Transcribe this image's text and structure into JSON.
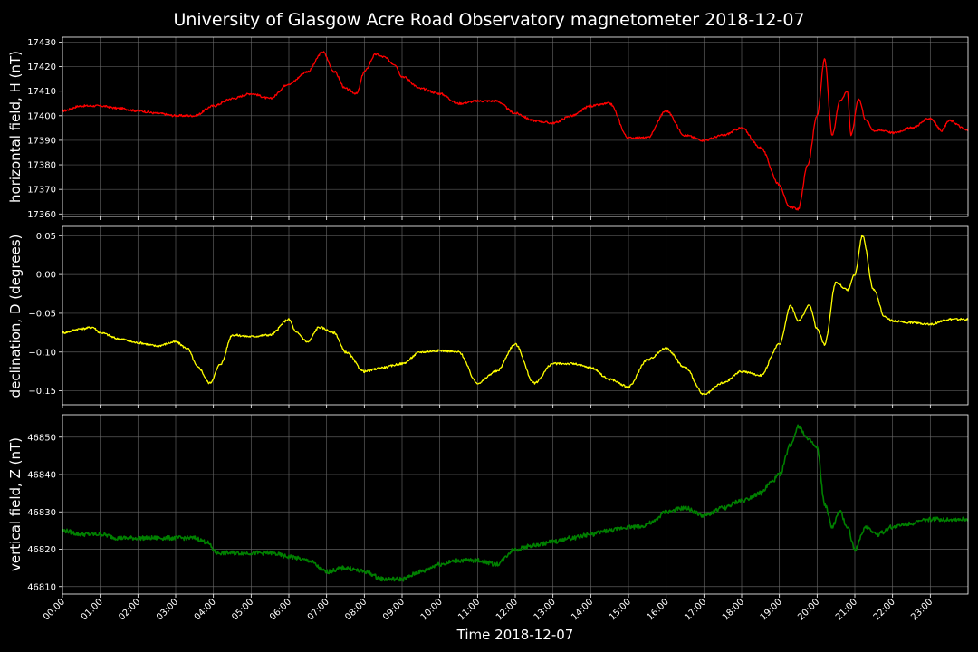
{
  "chart_data": {
    "title": "University of Glasgow Acre Road Observatory magnetometer 2018-12-07",
    "xlabel": "Time 2018-12-07",
    "x_ticks": [
      "00:00",
      "01:00",
      "02:00",
      "03:00",
      "04:00",
      "05:00",
      "06:00",
      "07:00",
      "08:00",
      "09:00",
      "10:00",
      "11:00",
      "12:00",
      "13:00",
      "14:00",
      "15:00",
      "16:00",
      "17:00",
      "18:00",
      "19:00",
      "20:00",
      "21:00",
      "22:00",
      "23:00"
    ],
    "xlim_hours": [
      0,
      24
    ],
    "grid": true,
    "panels": [
      {
        "type": "line",
        "name": "horizontal field, H",
        "ylabel": "horizontal field, H (nT)",
        "color": "#ff0000",
        "ylim": [
          17359,
          17432
        ],
        "y_ticks": [
          17360,
          17370,
          17380,
          17390,
          17400,
          17410,
          17420,
          17430
        ],
        "x_hours": [
          0,
          0.5,
          1,
          1.5,
          2,
          2.5,
          3,
          3.5,
          4,
          4.5,
          5,
          5.5,
          6,
          6.5,
          6.9,
          7.2,
          7.5,
          7.8,
          8,
          8.3,
          8.5,
          8.8,
          9,
          9.5,
          10,
          10.5,
          11,
          11.5,
          12,
          12.5,
          13,
          13.5,
          14,
          14.5,
          15,
          15.5,
          16,
          16.5,
          17,
          17.5,
          18,
          18.5,
          19,
          19.25,
          19.5,
          19.75,
          20,
          20.2,
          20.4,
          20.6,
          20.8,
          20.9,
          21.1,
          21.3,
          21.5,
          21.8,
          22,
          22.5,
          23,
          23.3,
          23.5,
          24
        ],
        "values": [
          17402,
          17404,
          17404,
          17403,
          17402,
          17401,
          17400,
          17400,
          17404,
          17407,
          17409,
          17407,
          17413,
          17418,
          17426,
          17418,
          17411,
          17409,
          17418,
          17425,
          17424,
          17421,
          17416,
          17411,
          17409,
          17405,
          17406,
          17406,
          17401,
          17398,
          17397,
          17400,
          17404,
          17405,
          17391,
          17391,
          17402,
          17392,
          17390,
          17392,
          17395,
          17387,
          17372,
          17363,
          17362,
          17380,
          17400,
          17423,
          17392,
          17406,
          17410,
          17392,
          17407,
          17398,
          17394,
          17394,
          17393,
          17395,
          17399,
          17394,
          17398,
          17394
        ]
      },
      {
        "type": "line",
        "name": "declination, D",
        "ylabel": "declination, D (degrees)",
        "color": "#ffff00",
        "ylim": [
          -0.168,
          0.062
        ],
        "y_ticks": [
          -0.15,
          -0.1,
          -0.05,
          0.0,
          0.05
        ],
        "y_tick_labels": [
          "−0.15",
          "−0.10",
          "−0.05",
          "0.00",
          "0.05"
        ],
        "x_hours": [
          0,
          0.5,
          0.8,
          1,
          1.5,
          2,
          2.5,
          3,
          3.3,
          3.6,
          3.9,
          4.2,
          4.5,
          5,
          5.5,
          6,
          6.2,
          6.5,
          6.8,
          7.2,
          7.5,
          8,
          8.5,
          9,
          9.5,
          10,
          10.5,
          11,
          11.5,
          12,
          12.5,
          13,
          13.5,
          14,
          14.5,
          15,
          15.5,
          16,
          16.5,
          17,
          17.5,
          18,
          18.5,
          19,
          19.3,
          19.5,
          19.8,
          20,
          20.2,
          20.5,
          20.8,
          21,
          21.2,
          21.5,
          21.8,
          22,
          22.5,
          23,
          23.5,
          24
        ],
        "values": [
          -0.075,
          -0.07,
          -0.068,
          -0.075,
          -0.083,
          -0.088,
          -0.092,
          -0.087,
          -0.095,
          -0.12,
          -0.14,
          -0.115,
          -0.078,
          -0.08,
          -0.078,
          -0.058,
          -0.075,
          -0.087,
          -0.068,
          -0.075,
          -0.1,
          -0.125,
          -0.12,
          -0.115,
          -0.1,
          -0.098,
          -0.1,
          -0.14,
          -0.125,
          -0.09,
          -0.14,
          -0.115,
          -0.115,
          -0.12,
          -0.135,
          -0.145,
          -0.11,
          -0.095,
          -0.12,
          -0.155,
          -0.14,
          -0.125,
          -0.13,
          -0.09,
          -0.04,
          -0.06,
          -0.04,
          -0.07,
          -0.09,
          -0.01,
          -0.02,
          0.0,
          0.05,
          -0.02,
          -0.055,
          -0.06,
          -0.062,
          -0.064,
          -0.058,
          -0.058
        ]
      },
      {
        "type": "line",
        "name": "vertical field, Z",
        "ylabel": "vertical field, Z (nT)",
        "color": "#008000",
        "ylim": [
          46808,
          46856
        ],
        "y_ticks": [
          46810,
          46820,
          46830,
          46840,
          46850
        ],
        "x_hours": [
          0,
          0.5,
          1,
          1.5,
          2,
          2.5,
          3,
          3.5,
          3.8,
          4.1,
          4.5,
          5,
          5.5,
          6,
          6.5,
          7,
          7.5,
          8,
          8.5,
          9,
          9.5,
          10,
          10.5,
          11,
          11.5,
          12,
          12.5,
          13,
          13.5,
          14,
          14.5,
          15,
          15.3,
          15.6,
          16,
          16.5,
          17,
          17.5,
          18,
          18.5,
          18.8,
          19,
          19.3,
          19.5,
          19.8,
          20,
          20.2,
          20.4,
          20.6,
          20.8,
          21,
          21.3,
          21.6,
          22,
          22.5,
          23,
          23.5,
          24
        ],
        "values": [
          46825,
          46824,
          46824,
          46823,
          46823,
          46823,
          46823,
          46823,
          46822,
          46819,
          46819,
          46819,
          46819,
          46818,
          46817,
          46814,
          46815,
          46814,
          46812,
          46812,
          46814,
          46816,
          46817,
          46817,
          46816,
          46820,
          46821,
          46822,
          46823,
          46824,
          46825,
          46826,
          46826,
          46827,
          46830,
          46831,
          46829,
          46831,
          46833,
          46835,
          46838,
          46840,
          46848,
          46853,
          46849,
          46847,
          46832,
          46826,
          46830,
          46826,
          46820,
          46826,
          46824,
          46826,
          46827,
          46828,
          46828,
          46828
        ]
      }
    ]
  }
}
